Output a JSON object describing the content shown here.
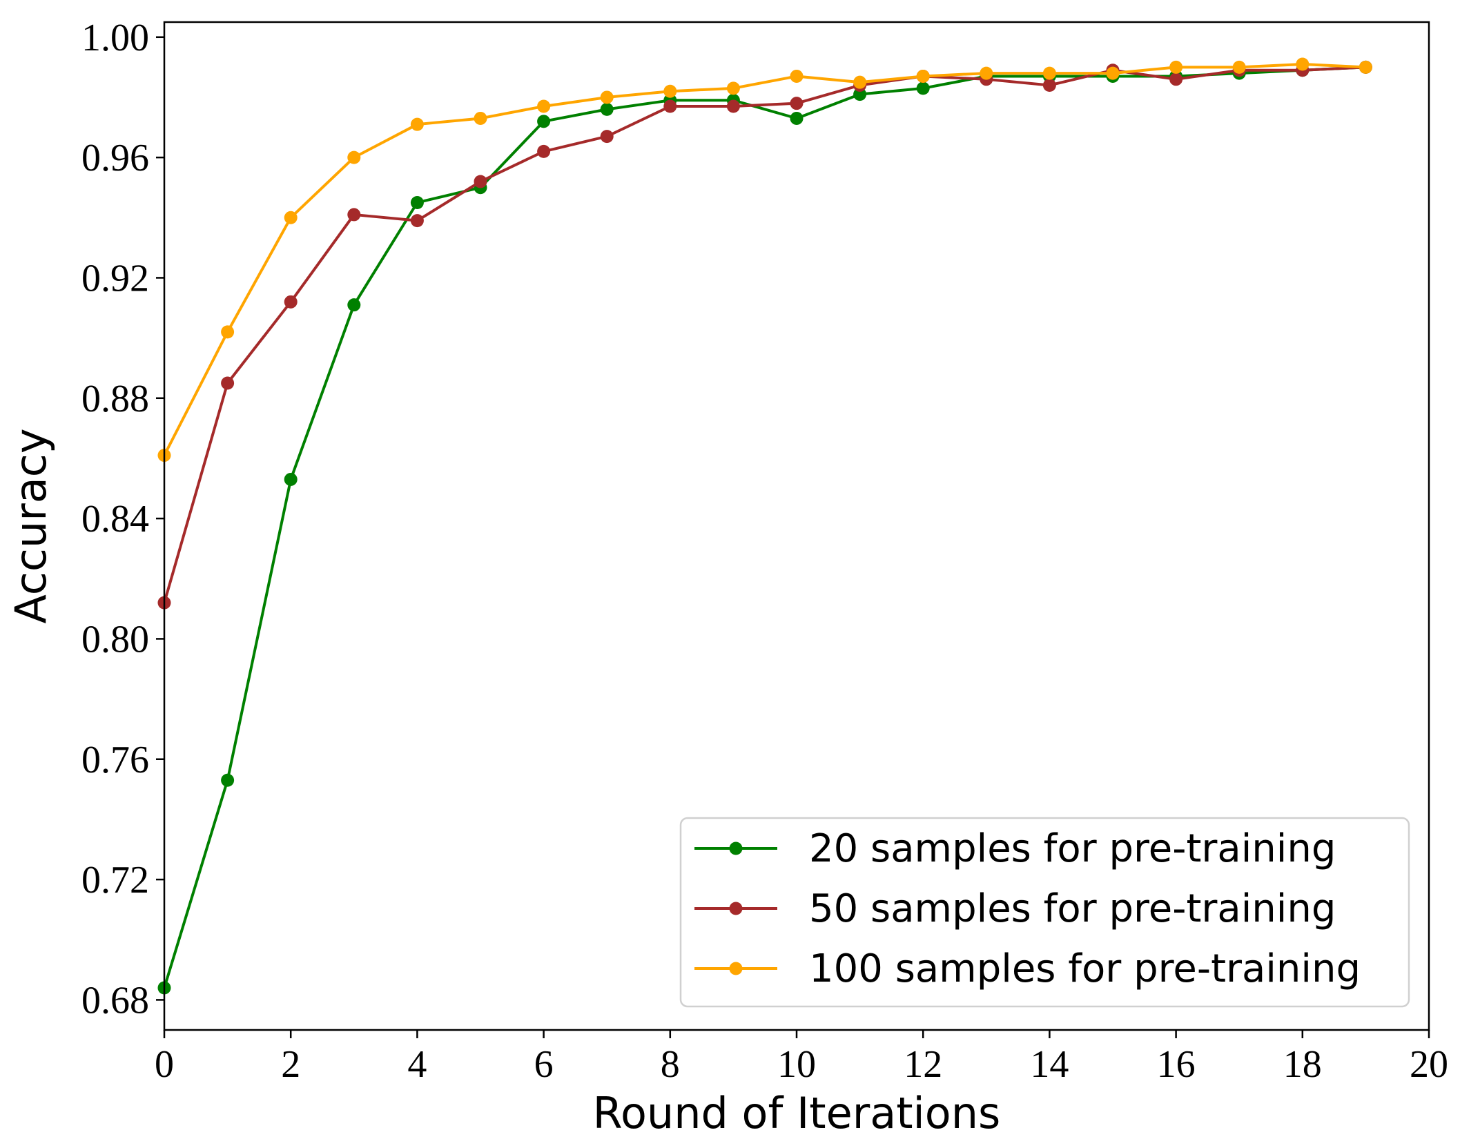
{
  "chart_data": {
    "type": "line",
    "title": "",
    "xlabel": "Round of Iterations",
    "ylabel": "Accuracy",
    "xlim": [
      0,
      20
    ],
    "ylim": [
      0.67,
      1.005
    ],
    "x_ticks": [
      0,
      2,
      4,
      6,
      8,
      10,
      12,
      14,
      16,
      18,
      20
    ],
    "x_tick_labels": [
      "0",
      "2",
      "4",
      "6",
      "8",
      "10",
      "12",
      "14",
      "16",
      "18",
      "20"
    ],
    "y_ticks": [
      0.68,
      0.72,
      0.76,
      0.8,
      0.84,
      0.88,
      0.92,
      0.96,
      1.0
    ],
    "y_tick_labels": [
      "0.68",
      "0.72",
      "0.76",
      "0.80",
      "0.84",
      "0.88",
      "0.92",
      "0.96",
      "1.00"
    ],
    "grid": false,
    "legend_position": "bottom-right",
    "x": [
      0,
      1,
      2,
      3,
      4,
      5,
      6,
      7,
      8,
      9,
      10,
      11,
      12,
      13,
      14,
      15,
      16,
      17,
      18,
      19
    ],
    "series": [
      {
        "name": "20 samples for pre-training",
        "color": "#008000",
        "marker": "circle",
        "values": [
          0.684,
          0.753,
          0.853,
          0.911,
          0.945,
          0.95,
          0.972,
          0.976,
          0.979,
          0.979,
          0.973,
          0.981,
          0.983,
          0.987,
          0.987,
          0.987,
          0.987,
          0.988,
          0.989,
          0.99
        ]
      },
      {
        "name": "50 samples for pre-training",
        "color": "#a52a2a",
        "marker": "circle",
        "values": [
          0.812,
          0.885,
          0.912,
          0.941,
          0.939,
          0.952,
          0.962,
          0.967,
          0.977,
          0.977,
          0.978,
          0.984,
          0.987,
          0.986,
          0.984,
          0.989,
          0.986,
          0.989,
          0.989,
          0.99
        ]
      },
      {
        "name": "100 samples for pre-training",
        "color": "#ffa500",
        "marker": "circle",
        "values": [
          0.861,
          0.902,
          0.94,
          0.96,
          0.971,
          0.973,
          0.977,
          0.98,
          0.982,
          0.983,
          0.987,
          0.985,
          0.987,
          0.988,
          0.988,
          0.988,
          0.99,
          0.99,
          0.991,
          0.99
        ]
      }
    ]
  }
}
